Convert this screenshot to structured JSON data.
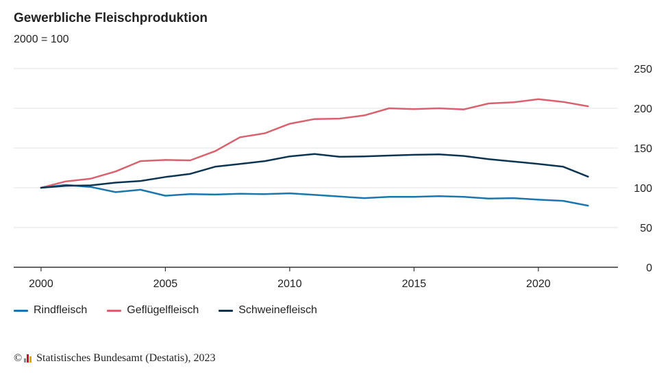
{
  "title": "Gewerbliche Fleischproduktion",
  "subtitle": "2000 = 100",
  "footer": {
    "copyright_symbol": "©",
    "source": "Statistisches Bundesamt (Destatis), 2023"
  },
  "colors": {
    "rindfleisch": "#1a76ad",
    "gefluegelfleisch": "#d9616e",
    "schweinefleisch": "#0c3350",
    "grid": "#e3e3e3",
    "axis": "#333333",
    "text": "#222222"
  },
  "chart_data": {
    "type": "line",
    "title": "Gewerbliche Fleischproduktion",
    "subtitle": "2000 = 100",
    "xlabel": "",
    "ylabel": "",
    "x": [
      2000,
      2001,
      2002,
      2003,
      2004,
      2005,
      2006,
      2007,
      2008,
      2009,
      2010,
      2011,
      2012,
      2013,
      2014,
      2015,
      2016,
      2017,
      2018,
      2019,
      2020,
      2021,
      2022
    ],
    "xlim": [
      1998.9,
      2023.2
    ],
    "ylim": [
      0,
      250
    ],
    "x_ticks": [
      2000,
      2005,
      2010,
      2015,
      2020
    ],
    "y_ticks": [
      0,
      50,
      100,
      150,
      200,
      250
    ],
    "y_axis_position": "right",
    "grid": true,
    "legend_position": "bottom-left",
    "series": [
      {
        "name": "Rindfleisch",
        "color": "#1a76ad",
        "values": [
          100,
          103.5,
          101,
          94.5,
          97.5,
          90,
          92,
          91.5,
          92.5,
          92,
          93,
          91,
          89,
          87,
          88.5,
          88.5,
          89.5,
          88.5,
          86.5,
          87,
          85,
          83.5,
          77.5
        ]
      },
      {
        "name": "Geflügelfleisch",
        "color": "#d9616e",
        "values": [
          100,
          108,
          111.5,
          120.5,
          133.5,
          135,
          134.5,
          146,
          163.5,
          168.5,
          180.5,
          186.5,
          187,
          191,
          200,
          199,
          200,
          198.5,
          206,
          207.5,
          211.5,
          208,
          202.5
        ]
      },
      {
        "name": "Schweinefleisch",
        "color": "#0c3350",
        "values": [
          100,
          102.5,
          103,
          106.5,
          108.5,
          113.5,
          117.5,
          126.5,
          130,
          133.5,
          139.5,
          142.5,
          139,
          139.5,
          140.5,
          141.5,
          142,
          140,
          136,
          133,
          130,
          126.5,
          114
        ]
      }
    ]
  }
}
